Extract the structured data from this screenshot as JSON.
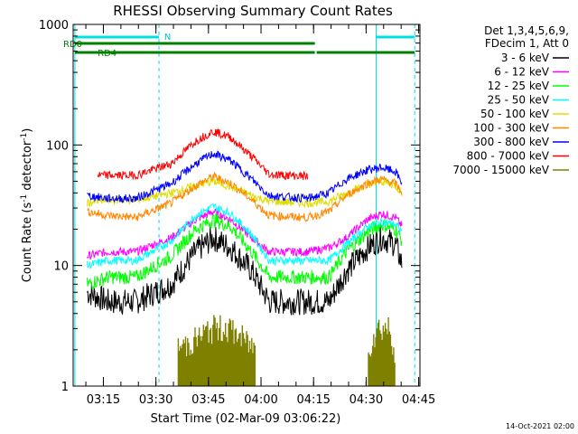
{
  "chart_data": {
    "type": "line",
    "title": "RHESSI Observing Summary Count Rates",
    "xlabel": "Start Time (02-Mar-09 03:06:22)",
    "ylabel": "Count Rate (s⁻¹ detector⁻¹)",
    "ylabel_parts": {
      "base": "Count Rate (s",
      "sup1": "-1",
      "mid": " detector",
      "sup2": "-1",
      "end": ")"
    },
    "yscale": "log",
    "ylim": [
      1,
      1000
    ],
    "xlim_minutes": [
      0,
      99
    ],
    "y_ticks": [
      "1",
      "10",
      "100",
      "1000"
    ],
    "x_ticks": [
      {
        "label": "03:15",
        "m": 8.63
      },
      {
        "label": "03:30",
        "m": 23.63
      },
      {
        "label": "03:45",
        "m": 38.63
      },
      {
        "label": "04:00",
        "m": 53.63
      },
      {
        "label": "04:15",
        "m": 68.63
      },
      {
        "label": "04:30",
        "m": 83.63
      },
      {
        "label": "04:45",
        "m": 98.63
      }
    ],
    "legend": {
      "placement": "right",
      "header1": "Det 1,3,4,5,6,9,",
      "header2": "FDecim 1, Att 0"
    },
    "series": [
      {
        "name": "3 - 6 keV",
        "color": "#000000",
        "values": [
          [
            4,
            6
          ],
          [
            10,
            5
          ],
          [
            18,
            5
          ],
          [
            28,
            7
          ],
          [
            35,
            13
          ],
          [
            40,
            17
          ],
          [
            45,
            14
          ],
          [
            51,
            9
          ],
          [
            56,
            5
          ],
          [
            67,
            5
          ],
          [
            73,
            5
          ],
          [
            78,
            9
          ],
          [
            84,
            14
          ],
          [
            88,
            17
          ],
          [
            92,
            15
          ],
          [
            94,
            10
          ]
        ]
      },
      {
        "name": "6 - 12 keV",
        "color": "#ff00ff",
        "values": [
          [
            4,
            12
          ],
          [
            10,
            13
          ],
          [
            18,
            13
          ],
          [
            28,
            17
          ],
          [
            35,
            24
          ],
          [
            40,
            28
          ],
          [
            45,
            24
          ],
          [
            51,
            17
          ],
          [
            56,
            13
          ],
          [
            67,
            13
          ],
          [
            73,
            14
          ],
          [
            78,
            17
          ],
          [
            84,
            24
          ],
          [
            88,
            27
          ],
          [
            92,
            25
          ],
          [
            94,
            21
          ]
        ]
      },
      {
        "name": "12 - 25 keV",
        "color": "#00ff00",
        "values": [
          [
            4,
            7
          ],
          [
            10,
            8
          ],
          [
            18,
            8
          ],
          [
            28,
            12
          ],
          [
            35,
            20
          ],
          [
            40,
            24
          ],
          [
            45,
            21
          ],
          [
            51,
            13
          ],
          [
            56,
            8
          ],
          [
            67,
            8
          ],
          [
            73,
            8
          ],
          [
            78,
            13
          ],
          [
            84,
            19
          ],
          [
            88,
            22
          ],
          [
            92,
            20
          ],
          [
            94,
            16
          ]
        ]
      },
      {
        "name": "25 - 50 keV",
        "color": "#00ffff",
        "values": [
          [
            4,
            10
          ],
          [
            10,
            11
          ],
          [
            18,
            11
          ],
          [
            28,
            16
          ],
          [
            35,
            26
          ],
          [
            40,
            31
          ],
          [
            45,
            27
          ],
          [
            51,
            18
          ],
          [
            56,
            11
          ],
          [
            67,
            11
          ],
          [
            73,
            11
          ],
          [
            78,
            15
          ],
          [
            84,
            21
          ],
          [
            88,
            23
          ],
          [
            92,
            22
          ],
          [
            94,
            19
          ]
        ]
      },
      {
        "name": "50 - 100 keV",
        "color": "#dddd00",
        "values": [
          [
            4,
            33
          ],
          [
            10,
            35
          ],
          [
            18,
            35
          ],
          [
            28,
            40
          ],
          [
            35,
            46
          ],
          [
            40,
            50
          ],
          [
            45,
            45
          ],
          [
            51,
            38
          ],
          [
            56,
            34
          ],
          [
            67,
            33
          ],
          [
            73,
            34
          ],
          [
            78,
            40
          ],
          [
            84,
            47
          ],
          [
            88,
            50
          ],
          [
            92,
            46
          ],
          [
            94,
            40
          ]
        ]
      },
      {
        "name": "100 - 300 keV",
        "color": "#ff8800",
        "values": [
          [
            4,
            28
          ],
          [
            10,
            26
          ],
          [
            18,
            25
          ],
          [
            28,
            33
          ],
          [
            35,
            46
          ],
          [
            40,
            55
          ],
          [
            45,
            48
          ],
          [
            51,
            35
          ],
          [
            56,
            26
          ],
          [
            67,
            25
          ],
          [
            73,
            28
          ],
          [
            78,
            38
          ],
          [
            84,
            48
          ],
          [
            88,
            52
          ],
          [
            92,
            48
          ],
          [
            94,
            40
          ]
        ]
      },
      {
        "name": "300 - 800 keV",
        "color": "#0000ff",
        "values": [
          [
            4,
            38
          ],
          [
            10,
            36
          ],
          [
            18,
            36
          ],
          [
            28,
            48
          ],
          [
            35,
            70
          ],
          [
            40,
            85
          ],
          [
            45,
            74
          ],
          [
            51,
            52
          ],
          [
            56,
            38
          ],
          [
            67,
            36
          ],
          [
            73,
            40
          ],
          [
            78,
            52
          ],
          [
            84,
            62
          ],
          [
            88,
            65
          ],
          [
            92,
            60
          ],
          [
            94,
            48
          ]
        ]
      },
      {
        "name": "800 - 7000 keV",
        "color": "#ff0000",
        "values": [
          [
            7,
            56
          ],
          [
            18,
            56
          ],
          [
            28,
            70
          ],
          [
            35,
            108
          ],
          [
            40,
            130
          ],
          [
            45,
            115
          ],
          [
            51,
            80
          ],
          [
            56,
            57
          ],
          [
            67,
            55
          ]
        ]
      },
      {
        "name": "7000 - 15000 keV",
        "color": "#808000",
        "values": [
          [
            30,
            2
          ],
          [
            36,
            2.5
          ],
          [
            40,
            3
          ],
          [
            44,
            3
          ],
          [
            48,
            2.5
          ],
          [
            52,
            2
          ],
          [
            84,
            2
          ],
          [
            87,
            3
          ],
          [
            90,
            3
          ],
          [
            92,
            2
          ]
        ]
      }
    ],
    "annotations": {
      "labels": [
        "N",
        "RD0",
        "RD4"
      ],
      "footer": "14-Oct-2021 02:00"
    }
  }
}
